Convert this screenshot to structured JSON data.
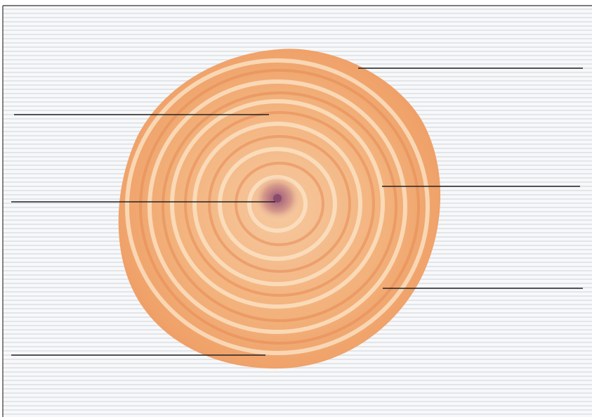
{
  "figure": {
    "type": "tree-trunk-cross-section",
    "text_labels": [],
    "leader_line_count": 6
  },
  "colors": {
    "frame_border": "#333333",
    "background_stripe_light": "#f6f7f8",
    "background_stripe_dark": "#e4e6ea",
    "wood_outer": "#f2a76a",
    "wood_light_ring": "#fbe3c6",
    "wood_dark_ring": "#e58a55",
    "heartwood_pith": "#a35a78",
    "leader_line": "#222222"
  }
}
